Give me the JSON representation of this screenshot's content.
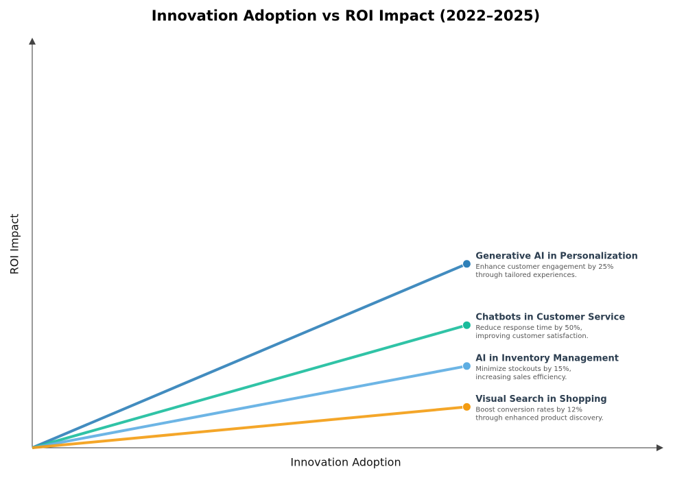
{
  "chart_data": {
    "type": "line",
    "title": "Innovation Adoption vs ROI Impact (2022–2025)",
    "x_label": "Innovation Adoption",
    "y_label": "ROI Impact",
    "xlim": [
      0,
      1
    ],
    "ylim": [
      0,
      1
    ],
    "series": [
      {
        "name": "Generative AI in Personalization",
        "color": "#2e80b8",
        "x": [
          0,
          0.69
        ],
        "values": [
          0,
          0.45
        ],
        "description": [
          "Enhance customer engagement by 25%",
          "through tailored experiences."
        ]
      },
      {
        "name": "Chatbots in Customer Service",
        "color": "#1abc9c",
        "x": [
          0,
          0.69
        ],
        "values": [
          0,
          0.3
        ],
        "description": [
          "Reduce response time by 50%,",
          "improving customer satisfaction."
        ]
      },
      {
        "name": "AI in Inventory Management",
        "color": "#5dade2",
        "x": [
          0,
          0.69
        ],
        "values": [
          0,
          0.2
        ],
        "description": [
          "Minimize stockouts by 15%,",
          "increasing sales efficiency."
        ]
      },
      {
        "name": "Visual Search in Shopping",
        "color": "#f39c12",
        "x": [
          0,
          0.69
        ],
        "values": [
          0,
          0.1
        ],
        "description": [
          "Boost conversion rates by 12%",
          "through enhanced product discovery."
        ]
      }
    ]
  }
}
